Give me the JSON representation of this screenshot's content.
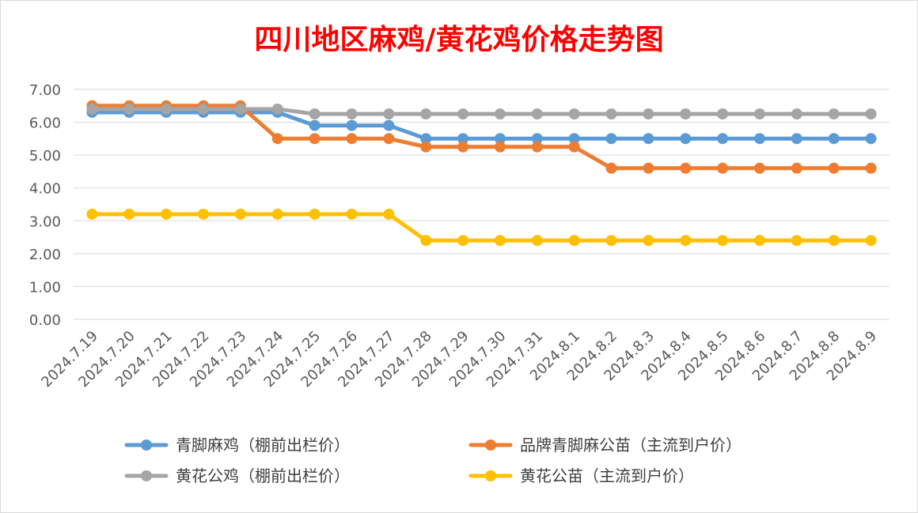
{
  "chart_data": {
    "type": "line",
    "title": "四川地区麻鸡/黄花鸡价格走势图",
    "categories": [
      "2024.7.19",
      "2024.7.20",
      "2024.7.21",
      "2024.7.22",
      "2024.7.23",
      "2024.7.24",
      "2024.7.25",
      "2024.7.26",
      "2024.7.27",
      "2024.7.28",
      "2024.7.29",
      "2024.7.30",
      "2024.7.31",
      "2024.8.1",
      "2024.8.2",
      "2024.8.3",
      "2024.8.4",
      "2024.8.5",
      "2024.8.6",
      "2024.8.7",
      "2024.8.8",
      "2024.8.9"
    ],
    "ylim": [
      0,
      7
    ],
    "yticks": [
      "0.00",
      "1.00",
      "2.00",
      "3.00",
      "4.00",
      "5.00",
      "6.00",
      "7.00"
    ],
    "grid": true,
    "legend_position": "bottom",
    "series": [
      {
        "name": "青脚麻鸡（棚前出栏价）",
        "color": "#5b9bd5",
        "values": [
          6.3,
          6.3,
          6.3,
          6.3,
          6.3,
          6.3,
          5.9,
          5.9,
          5.9,
          5.5,
          5.5,
          5.5,
          5.5,
          5.5,
          5.5,
          5.5,
          5.5,
          5.5,
          5.5,
          5.5,
          5.5,
          5.5
        ]
      },
      {
        "name": "品牌青脚麻公苗（主流到户价）",
        "color": "#ed7d31",
        "values": [
          6.5,
          6.5,
          6.5,
          6.5,
          6.5,
          5.5,
          5.5,
          5.5,
          5.5,
          5.25,
          5.25,
          5.25,
          5.25,
          5.25,
          4.6,
          4.6,
          4.6,
          4.6,
          4.6,
          4.6,
          4.6,
          4.6
        ]
      },
      {
        "name": "黄花公鸡（棚前出栏价）",
        "color": "#a5a5a5",
        "values": [
          6.4,
          6.4,
          6.4,
          6.4,
          6.4,
          6.4,
          6.25,
          6.25,
          6.25,
          6.25,
          6.25,
          6.25,
          6.25,
          6.25,
          6.25,
          6.25,
          6.25,
          6.25,
          6.25,
          6.25,
          6.25,
          6.25
        ]
      },
      {
        "name": "黄花公苗（主流到户价）",
        "color": "#ffc000",
        "values": [
          3.2,
          3.2,
          3.2,
          3.2,
          3.2,
          3.2,
          3.2,
          3.2,
          3.2,
          2.4,
          2.4,
          2.4,
          2.4,
          2.4,
          2.4,
          2.4,
          2.4,
          2.4,
          2.4,
          2.4,
          2.4,
          2.4
        ]
      }
    ]
  }
}
